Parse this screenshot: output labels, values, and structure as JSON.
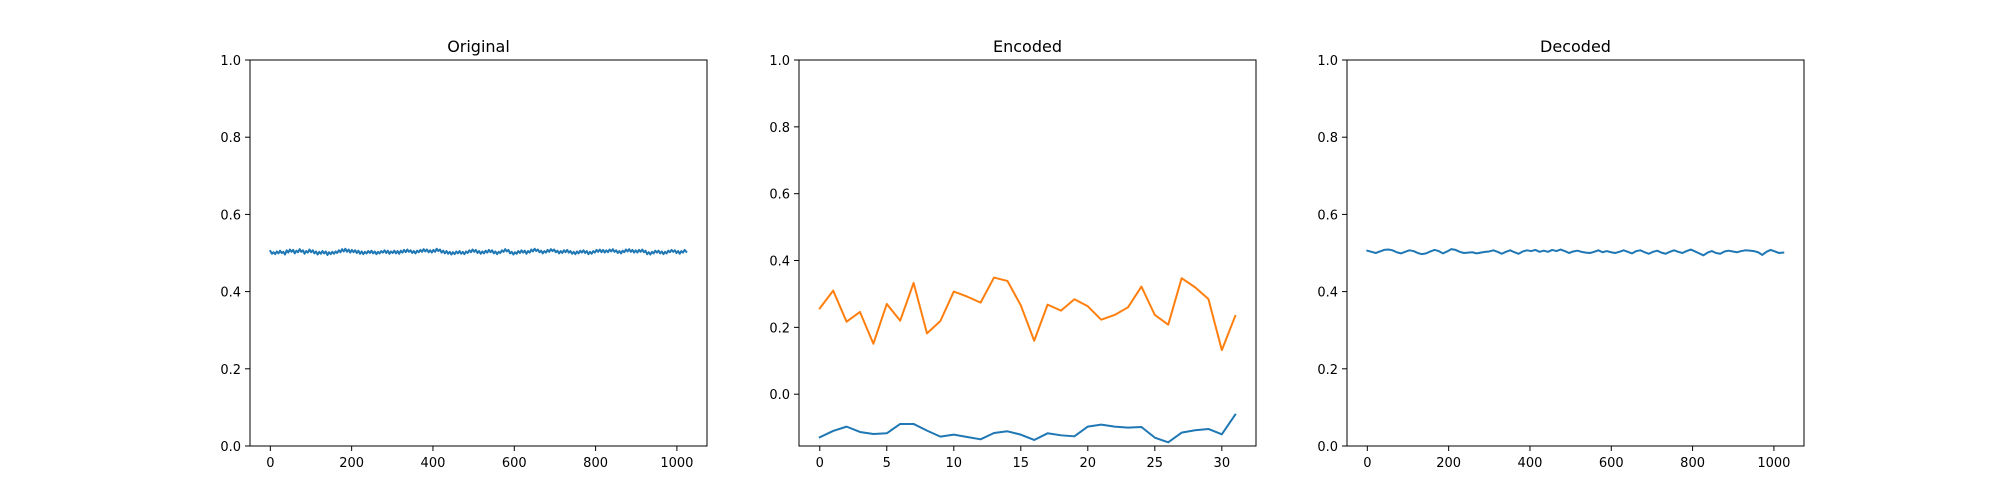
{
  "chart_data": [
    {
      "type": "line",
      "title": "Original",
      "xlabel": "",
      "ylabel": "",
      "xlim": [
        -50,
        1074
      ],
      "ylim": [
        0.0,
        1.0
      ],
      "xticks": [
        0,
        200,
        400,
        600,
        800,
        1000
      ],
      "xtick_labels": [
        "0",
        "200",
        "400",
        "600",
        "800",
        "1000"
      ],
      "yticks": [
        0.0,
        0.2,
        0.4,
        0.6,
        0.8,
        1.0
      ],
      "ytick_labels": [
        "0.0",
        "0.2",
        "0.4",
        "0.6",
        "0.8",
        "1.0"
      ],
      "grid": false,
      "series": [
        {
          "color": "#1f77b4",
          "x_range": [
            0,
            1023
          ],
          "values": [
            0.505,
            0.498,
            0.502,
            0.497,
            0.504,
            0.499,
            0.506,
            0.5,
            0.503,
            0.496,
            0.507,
            0.501,
            0.509,
            0.503,
            0.508,
            0.499,
            0.506,
            0.502,
            0.51,
            0.503,
            0.507,
            0.498,
            0.505,
            0.501,
            0.509,
            0.502,
            0.507,
            0.499,
            0.504,
            0.496,
            0.503,
            0.498,
            0.505,
            0.499,
            0.504,
            0.495,
            0.502,
            0.497,
            0.503,
            0.498,
            0.504,
            0.5,
            0.507,
            0.502,
            0.51,
            0.504,
            0.511,
            0.503,
            0.509,
            0.501,
            0.508,
            0.502,
            0.507,
            0.5,
            0.506,
            0.498,
            0.504,
            0.497,
            0.503,
            0.499,
            0.505,
            0.5,
            0.506,
            0.499,
            0.504,
            0.497,
            0.503,
            0.499,
            0.505,
            0.501,
            0.507,
            0.5,
            0.506,
            0.498,
            0.504,
            0.5,
            0.506,
            0.499,
            0.505,
            0.498,
            0.506,
            0.501,
            0.508,
            0.502,
            0.509,
            0.503,
            0.507,
            0.5,
            0.505,
            0.499,
            0.506,
            0.502,
            0.508,
            0.503,
            0.51,
            0.504,
            0.509,
            0.502,
            0.507,
            0.501,
            0.508,
            0.503,
            0.511,
            0.505,
            0.509,
            0.501,
            0.506,
            0.499,
            0.505,
            0.498,
            0.503,
            0.496,
            0.502,
            0.497,
            0.504,
            0.499,
            0.505,
            0.498,
            0.503,
            0.497,
            0.504,
            0.5,
            0.507,
            0.502,
            0.509,
            0.503,
            0.508,
            0.5,
            0.505,
            0.498,
            0.504,
            0.499,
            0.506,
            0.501,
            0.508,
            0.502,
            0.507,
            0.499,
            0.504,
            0.497,
            0.503,
            0.5,
            0.507,
            0.503,
            0.51,
            0.504,
            0.508,
            0.499,
            0.503,
            0.496,
            0.502,
            0.498,
            0.505,
            0.5,
            0.507,
            0.501,
            0.506,
            0.498,
            0.505,
            0.501,
            0.509,
            0.504,
            0.511,
            0.505,
            0.509,
            0.502,
            0.506,
            0.499,
            0.505,
            0.501,
            0.508,
            0.503,
            0.51,
            0.505,
            0.509,
            0.502,
            0.506,
            0.499,
            0.505,
            0.5,
            0.507,
            0.502,
            0.508,
            0.501,
            0.505,
            0.498,
            0.503,
            0.497,
            0.504,
            0.499,
            0.506,
            0.501,
            0.507,
            0.5,
            0.505,
            0.497,
            0.503,
            0.498,
            0.505,
            0.501,
            0.508,
            0.503,
            0.509,
            0.502,
            0.508,
            0.501,
            0.507,
            0.502,
            0.509,
            0.504,
            0.51,
            0.503,
            0.507,
            0.5,
            0.505,
            0.499,
            0.506,
            0.502,
            0.509,
            0.504,
            0.51,
            0.503,
            0.508,
            0.501,
            0.507,
            0.501,
            0.508,
            0.503,
            0.509,
            0.502,
            0.506,
            0.497,
            0.502,
            0.496,
            0.503,
            0.499,
            0.506,
            0.501,
            0.506,
            0.499,
            0.504,
            0.497,
            0.503,
            0.499,
            0.506,
            0.502,
            0.508,
            0.503,
            0.507,
            0.5,
            0.505,
            0.498,
            0.505,
            0.501,
            0.508,
            0.503
          ]
        }
      ]
    },
    {
      "type": "line",
      "title": "Encoded",
      "xlabel": "",
      "ylabel": "",
      "xlim": [
        -1.55,
        32.55
      ],
      "ylim": [
        -0.155,
        1.0
      ],
      "xticks": [
        0,
        5,
        10,
        15,
        20,
        25,
        30
      ],
      "xtick_labels": [
        "0",
        "5",
        "10",
        "15",
        "20",
        "25",
        "30"
      ],
      "yticks": [
        0.0,
        0.2,
        0.4,
        0.6,
        0.8,
        1.0
      ],
      "ytick_labels": [
        "0.0",
        "0.2",
        "0.4",
        "0.6",
        "0.8",
        "1.0"
      ],
      "grid": false,
      "series": [
        {
          "color": "#1f77b4",
          "x": [
            0,
            1,
            2,
            3,
            4,
            5,
            6,
            7,
            8,
            9,
            10,
            11,
            12,
            13,
            14,
            15,
            16,
            17,
            18,
            19,
            20,
            21,
            22,
            23,
            24,
            25,
            26,
            27,
            28,
            29,
            30,
            31
          ],
          "values": [
            -0.129,
            -0.11,
            -0.097,
            -0.113,
            -0.119,
            -0.117,
            -0.089,
            -0.089,
            -0.109,
            -0.127,
            -0.121,
            -0.128,
            -0.135,
            -0.116,
            -0.111,
            -0.121,
            -0.137,
            -0.117,
            -0.123,
            -0.126,
            -0.097,
            -0.091,
            -0.097,
            -0.1,
            -0.098,
            -0.13,
            -0.144,
            -0.115,
            -0.108,
            -0.104,
            -0.12,
            -0.061
          ]
        },
        {
          "color": "#ff7f0e",
          "x": [
            0,
            1,
            2,
            3,
            4,
            5,
            6,
            7,
            8,
            9,
            10,
            11,
            12,
            13,
            14,
            15,
            16,
            17,
            18,
            19,
            20,
            21,
            22,
            23,
            24,
            25,
            26,
            27,
            28,
            29,
            30,
            31
          ],
          "values": [
            0.257,
            0.31,
            0.217,
            0.246,
            0.151,
            0.27,
            0.22,
            0.333,
            0.182,
            0.219,
            0.307,
            0.292,
            0.274,
            0.349,
            0.339,
            0.266,
            0.16,
            0.268,
            0.25,
            0.284,
            0.263,
            0.223,
            0.237,
            0.26,
            0.322,
            0.237,
            0.208,
            0.347,
            0.32,
            0.285,
            0.132,
            0.234
          ]
        }
      ]
    },
    {
      "type": "line",
      "title": "Decoded",
      "xlabel": "",
      "ylabel": "",
      "xlim": [
        -50,
        1074
      ],
      "ylim": [
        0.0,
        1.0
      ],
      "xticks": [
        0,
        200,
        400,
        600,
        800,
        1000
      ],
      "xtick_labels": [
        "0",
        "200",
        "400",
        "600",
        "800",
        "1000"
      ],
      "yticks": [
        0.0,
        0.2,
        0.4,
        0.6,
        0.8,
        1.0
      ],
      "ytick_labels": [
        "0.0",
        "0.2",
        "0.4",
        "0.6",
        "0.8",
        "1.0"
      ],
      "grid": false,
      "series": [
        {
          "color": "#1f77b4",
          "x_range": [
            0,
            1023
          ],
          "values": [
            0.506,
            0.503,
            0.5,
            0.504,
            0.508,
            0.509,
            0.507,
            0.502,
            0.499,
            0.503,
            0.507,
            0.505,
            0.5,
            0.497,
            0.499,
            0.504,
            0.508,
            0.505,
            0.499,
            0.504,
            0.51,
            0.508,
            0.503,
            0.5,
            0.501,
            0.502,
            0.499,
            0.501,
            0.503,
            0.504,
            0.507,
            0.503,
            0.498,
            0.503,
            0.507,
            0.502,
            0.498,
            0.504,
            0.507,
            0.505,
            0.508,
            0.503,
            0.506,
            0.503,
            0.508,
            0.505,
            0.509,
            0.505,
            0.5,
            0.504,
            0.506,
            0.503,
            0.501,
            0.5,
            0.503,
            0.507,
            0.502,
            0.505,
            0.502,
            0.5,
            0.503,
            0.507,
            0.503,
            0.499,
            0.505,
            0.507,
            0.502,
            0.498,
            0.503,
            0.506,
            0.501,
            0.498,
            0.503,
            0.507,
            0.503,
            0.5,
            0.505,
            0.509,
            0.504,
            0.499,
            0.494,
            0.501,
            0.505,
            0.5,
            0.498,
            0.504,
            0.506,
            0.504,
            0.502,
            0.505,
            0.507,
            0.506,
            0.505,
            0.502,
            0.495,
            0.503,
            0.508,
            0.504,
            0.5,
            0.501
          ]
        }
      ]
    }
  ]
}
